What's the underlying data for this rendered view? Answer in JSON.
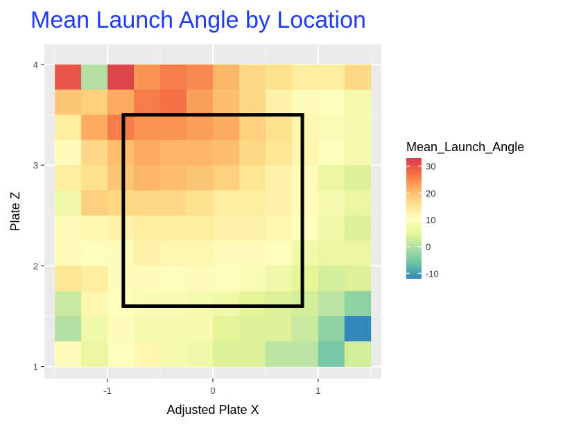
{
  "chart_data": {
    "type": "heatmap",
    "title": "Mean Launch Angle by Location",
    "title_color": "#1f3cf2",
    "xlabel": "Adjusted Plate X",
    "ylabel": "Plate Z",
    "xlim": [
      -1.6,
      1.6
    ],
    "ylim": [
      0.88,
      4.2
    ],
    "x_ticks": [
      {
        "value": -1,
        "label": "-1"
      },
      {
        "value": 0,
        "label": "0"
      },
      {
        "value": 1,
        "label": "1"
      }
    ],
    "y_ticks": [
      {
        "value": 1,
        "label": "1"
      },
      {
        "value": 2,
        "label": "2"
      },
      {
        "value": 3,
        "label": "3"
      },
      {
        "value": 4,
        "label": "4"
      }
    ],
    "grid": true,
    "panel_background": "#ebebeb",
    "cell_size": {
      "x": 0.25,
      "y": 0.25
    },
    "x_centers": [
      -1.375,
      -1.125,
      -0.875,
      -0.625,
      -0.375,
      -0.125,
      0.125,
      0.375,
      0.625,
      0.875,
      1.125,
      1.375
    ],
    "y_centers": [
      3.875,
      3.625,
      3.375,
      3.125,
      2.875,
      2.625,
      2.375,
      2.125,
      1.875,
      1.625,
      1.375,
      1.125
    ],
    "z": [
      [
        30,
        0,
        32,
        24,
        26,
        25,
        21,
        17,
        16,
        14,
        14,
        17
      ],
      [
        19,
        18,
        22,
        26,
        27,
        23,
        20,
        17,
        13,
        11,
        10,
        8
      ],
      [
        14,
        22,
        26,
        24,
        24,
        23,
        22,
        18,
        16,
        12,
        9,
        8
      ],
      [
        11,
        17,
        20,
        22,
        21,
        21,
        20,
        17,
        15,
        12,
        10,
        8
      ],
      [
        14,
        16,
        19,
        21,
        20,
        19,
        18,
        15,
        13,
        11,
        6,
        4
      ],
      [
        7,
        18,
        17,
        17,
        17,
        16,
        14,
        14,
        13,
        11,
        8,
        6
      ],
      [
        11,
        12,
        13,
        14,
        14,
        14,
        13,
        13,
        12,
        10,
        7,
        4
      ],
      [
        11,
        10,
        11,
        13,
        12,
        12,
        11,
        11,
        10,
        7,
        6,
        6
      ],
      [
        15,
        14,
        11,
        11,
        10,
        11,
        10,
        9,
        7,
        5,
        3,
        4
      ],
      [
        2,
        12,
        10,
        9,
        9,
        8,
        7,
        5,
        4,
        3,
        1,
        -3
      ],
      [
        0,
        7,
        11,
        8,
        8,
        8,
        5,
        4,
        4,
        2,
        -3,
        -12
      ],
      [
        11,
        6,
        10,
        12,
        8,
        7,
        4,
        4,
        1,
        1,
        -5,
        3
      ]
    ],
    "strike_zone": {
      "x": [
        -0.85,
        0.85
      ],
      "z": [
        1.6,
        3.5
      ],
      "color": "#000000"
    },
    "legend": {
      "title": "Mean_Launch_Angle",
      "position": "right",
      "min": -12,
      "max": 33,
      "ticks": [
        {
          "value": 30,
          "label": "30"
        },
        {
          "value": 20,
          "label": "20"
        },
        {
          "value": 10,
          "label": "10"
        },
        {
          "value": 0,
          "label": "0"
        },
        {
          "value": -10,
          "label": "-10"
        }
      ]
    },
    "palette": [
      "#3288bd",
      "#66c2a5",
      "#abdda4",
      "#e6f598",
      "#ffffbf",
      "#fee08b",
      "#fdae61",
      "#f46d43",
      "#d53e4f"
    ]
  }
}
